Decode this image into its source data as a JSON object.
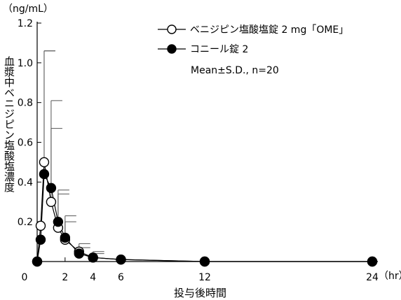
{
  "chart_data": {
    "type": "line",
    "unit_label": "（ng/mL）",
    "ylabel": "血漿中ベニジピン塩酸塩濃度",
    "xlabel": "投与後時間",
    "x_unit": "（hr）",
    "xlim": [
      0,
      24
    ],
    "ylim": [
      0,
      1.2
    ],
    "x_ticks": [
      0,
      2,
      4,
      6,
      12,
      24
    ],
    "y_ticks": [
      0.2,
      0.4,
      0.6,
      0.8,
      1.0,
      1.2
    ],
    "y_tick_labels": [
      "0.2",
      "0.4",
      "0.6",
      "0.8",
      "1.0",
      "1.2"
    ],
    "annotation": "Mean±S.D., n=20",
    "legend_position": "top-right",
    "series": [
      {
        "name": "ベニジピン塩酸塩錠 2 mg「OME」",
        "marker": "open-circle",
        "x": [
          0,
          0.25,
          0.5,
          1,
          1.5,
          2,
          3,
          4,
          6,
          12,
          24
        ],
        "y": [
          0,
          0.18,
          0.5,
          0.3,
          0.17,
          0.11,
          0.05,
          0.02,
          0.01,
          0.0,
          0.0
        ],
        "sd": [
          0,
          0,
          0.56,
          0.51,
          0.17,
          0.12,
          0.04,
          0.03,
          0,
          0,
          0
        ]
      },
      {
        "name": "コニール錠 2",
        "marker": "filled-circle",
        "x": [
          0,
          0.25,
          0.5,
          1,
          1.5,
          2,
          3,
          4,
          6,
          12,
          24
        ],
        "y": [
          0,
          0.11,
          0.44,
          0.37,
          0.2,
          0.12,
          0.04,
          0.02,
          0.01,
          0.0,
          0.0
        ],
        "sd": [
          0,
          0,
          0.62,
          0.3,
          0.16,
          0.08,
          0.03,
          0.02,
          0,
          0,
          0
        ]
      }
    ]
  }
}
